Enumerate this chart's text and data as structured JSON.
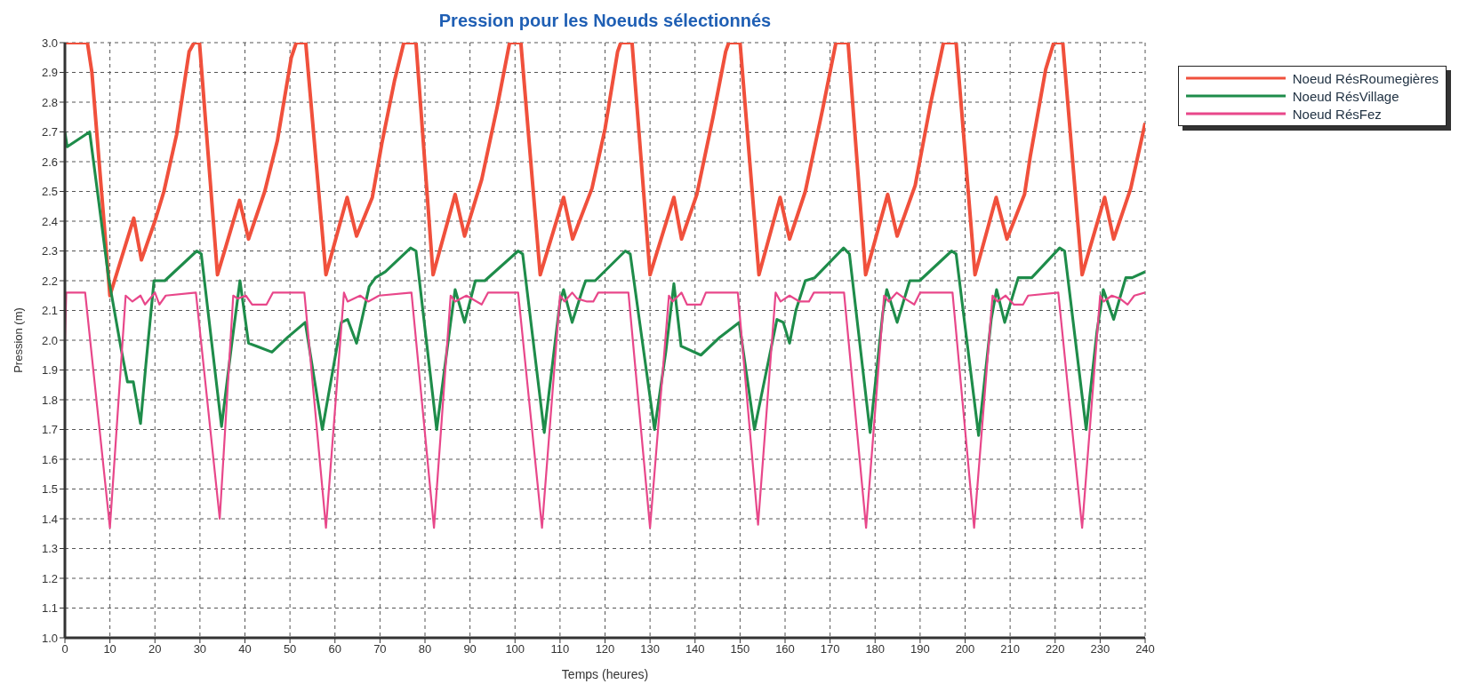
{
  "chart_data": {
    "type": "line",
    "title": "Pression pour les Noeuds sélectionnés",
    "xlabel": "Temps (heures)",
    "ylabel": "Pression (m)",
    "xlim": [
      0,
      240
    ],
    "xticks": [
      0,
      10,
      20,
      30,
      40,
      50,
      60,
      70,
      80,
      90,
      100,
      110,
      120,
      130,
      140,
      150,
      160,
      170,
      180,
      190,
      200,
      210,
      220,
      230,
      240
    ],
    "ylim": [
      1,
      3
    ],
    "yticks": [
      {
        "value": 1,
        "label": "1.0"
      },
      1.1,
      1.2,
      1.3,
      1.4,
      1.5,
      1.6,
      1.7,
      1.8,
      1.9,
      {
        "value": 2,
        "label": "2.0"
      },
      2.1,
      2.2,
      2.3,
      2.4,
      2.5,
      2.6,
      2.7,
      2.8,
      2.9,
      {
        "value": 3,
        "label": "3.0"
      }
    ],
    "grid": true,
    "legend": "top right",
    "marker": "none",
    "line_style": "solid",
    "series": [
      {
        "name": "Noeud RésRoumegières",
        "color": "#f0503c",
        "x": [
          0,
          5,
          6,
          10,
          15.3,
          17,
          20,
          22,
          24.8,
          27.6,
          28.7,
          29.9,
          33.9,
          38.8,
          40.8,
          44.4,
          47.2,
          50.3,
          51.4,
          53.5,
          58,
          62.7,
          64.8,
          68.3,
          70.4,
          73.2,
          75.3,
          78,
          81.8,
          86.7,
          88.8,
          92.6,
          96,
          98.8,
          101.3,
          105.6,
          110.8,
          112.8,
          117.1,
          120,
          122.8,
          123.5,
          126,
          130,
          135.3,
          137,
          140.4,
          144,
          146.8,
          147.5,
          150,
          154.2,
          158.9,
          161,
          164.5,
          168.4,
          171.3,
          174,
          177.9,
          182.8,
          184.9,
          188.9,
          192.4,
          195.2,
          198,
          202.2,
          206.9,
          209.3,
          213.2,
          214.5,
          217.9,
          219.7,
          221.7,
          226,
          231,
          233,
          236.8,
          240
        ],
        "values": [
          3.0,
          3.0,
          2.9,
          2.15,
          2.41,
          2.27,
          2.4,
          2.5,
          2.69,
          2.97,
          3.0,
          3.0,
          2.22,
          2.47,
          2.34,
          2.5,
          2.67,
          2.95,
          3.0,
          3.0,
          2.22,
          2.48,
          2.35,
          2.48,
          2.66,
          2.87,
          3.0,
          3.0,
          2.22,
          2.49,
          2.35,
          2.54,
          2.78,
          3.0,
          3.0,
          2.22,
          2.48,
          2.34,
          2.51,
          2.71,
          2.97,
          3.0,
          3.0,
          2.22,
          2.48,
          2.34,
          2.49,
          2.75,
          2.97,
          3.0,
          3.0,
          2.22,
          2.48,
          2.34,
          2.5,
          2.78,
          3.0,
          3.0,
          2.22,
          2.49,
          2.35,
          2.52,
          2.8,
          3.0,
          3.0,
          2.22,
          2.48,
          2.34,
          2.49,
          2.62,
          2.91,
          3.0,
          3.0,
          2.22,
          2.48,
          2.34,
          2.51,
          2.73
        ]
      },
      {
        "name": "Noeud RésVillage",
        "color": "#1e8c4a",
        "x": [
          0,
          0.5,
          5.5,
          7.4,
          9.7,
          12.5,
          13.9,
          15.2,
          16.8,
          18,
          19.8,
          22.2,
          29.3,
          30.3,
          34.8,
          37,
          38.9,
          40.8,
          42.6,
          46,
          49.5,
          53.4,
          57.2,
          61.4,
          62.8,
          64.8,
          67.6,
          69,
          71.2,
          76.8,
          78,
          82.6,
          85.7,
          86.7,
          88.8,
          91.2,
          93.3,
          100.7,
          101.7,
          106.5,
          110,
          110.8,
          112.7,
          115,
          115.7,
          117.8,
          124.5,
          125.6,
          131,
          133.5,
          135.3,
          136.9,
          141.3,
          145.5,
          149.8,
          153.2,
          158.2,
          159.6,
          161,
          162.4,
          164.5,
          166.6,
          173,
          174.3,
          178.9,
          181.7,
          182.6,
          184.9,
          187.7,
          189.9,
          197,
          198,
          203,
          205.8,
          207,
          208.8,
          211.8,
          214.8,
          221,
          222.1,
          226.9,
          229.3,
          230.7,
          233,
          235.7,
          237.1,
          240
        ],
        "values": [
          2.7,
          2.65,
          2.7,
          2.48,
          2.21,
          1.97,
          1.86,
          1.86,
          1.72,
          1.92,
          2.2,
          2.2,
          2.3,
          2.29,
          1.71,
          1.98,
          2.2,
          1.99,
          1.98,
          1.96,
          2.01,
          2.06,
          1.7,
          2.06,
          2.07,
          1.99,
          2.18,
          2.21,
          2.23,
          2.31,
          2.3,
          1.7,
          2.06,
          2.17,
          2.06,
          2.2,
          2.2,
          2.3,
          2.29,
          1.69,
          2.13,
          2.17,
          2.06,
          2.17,
          2.2,
          2.2,
          2.3,
          2.29,
          1.7,
          1.96,
          2.19,
          1.98,
          1.95,
          2.01,
          2.06,
          1.7,
          2.07,
          2.06,
          1.99,
          2.1,
          2.2,
          2.21,
          2.31,
          2.29,
          1.69,
          2.09,
          2.17,
          2.06,
          2.2,
          2.2,
          2.3,
          2.29,
          1.68,
          2.07,
          2.17,
          2.06,
          2.21,
          2.21,
          2.31,
          2.3,
          1.7,
          2.03,
          2.17,
          2.07,
          2.21,
          2.21,
          2.23
        ]
      },
      {
        "name": "Noeud RésFez",
        "color": "#e8478a",
        "x": [
          0,
          0.3,
          4.5,
          10,
          13.5,
          15,
          16.8,
          17.8,
          20,
          21,
          22.4,
          29.1,
          34.4,
          37.4,
          38.4,
          40.2,
          41.6,
          44.8,
          46.2,
          53.2,
          58,
          62,
          62.8,
          65.6,
          67.4,
          69.8,
          77,
          82,
          85.7,
          86.7,
          89.2,
          92.6,
          94,
          100.7,
          106,
          110,
          111,
          112.7,
          113.8,
          116,
          117.4,
          118.5,
          125.2,
          130,
          134.2,
          135,
          137,
          138.2,
          141.3,
          142.4,
          149.5,
          154,
          157.9,
          159,
          161,
          163.2,
          165.3,
          166.4,
          173.1,
          178,
          182,
          183,
          184.8,
          186.6,
          188.7,
          190,
          197.2,
          202,
          206.1,
          207.2,
          209,
          210.8,
          212.9,
          214,
          220.7,
          226,
          230,
          230.8,
          232.6,
          234.4,
          236.1,
          237.6,
          240
        ],
        "values": [
          2.0,
          2.16,
          2.16,
          1.37,
          2.15,
          2.13,
          2.15,
          2.12,
          2.16,
          2.12,
          2.15,
          2.16,
          1.4,
          2.15,
          2.14,
          2.15,
          2.12,
          2.12,
          2.16,
          2.16,
          1.37,
          2.16,
          2.13,
          2.15,
          2.13,
          2.15,
          2.16,
          1.37,
          2.15,
          2.13,
          2.15,
          2.12,
          2.16,
          2.16,
          1.37,
          2.15,
          2.13,
          2.16,
          2.14,
          2.13,
          2.13,
          2.16,
          2.16,
          1.37,
          2.15,
          2.13,
          2.16,
          2.12,
          2.12,
          2.16,
          2.16,
          1.38,
          2.16,
          2.13,
          2.15,
          2.13,
          2.13,
          2.16,
          2.16,
          1.37,
          2.15,
          2.13,
          2.16,
          2.14,
          2.12,
          2.16,
          2.16,
          1.37,
          2.15,
          2.13,
          2.15,
          2.12,
          2.12,
          2.15,
          2.16,
          1.37,
          2.15,
          2.13,
          2.15,
          2.14,
          2.12,
          2.15,
          2.16
        ]
      }
    ]
  }
}
